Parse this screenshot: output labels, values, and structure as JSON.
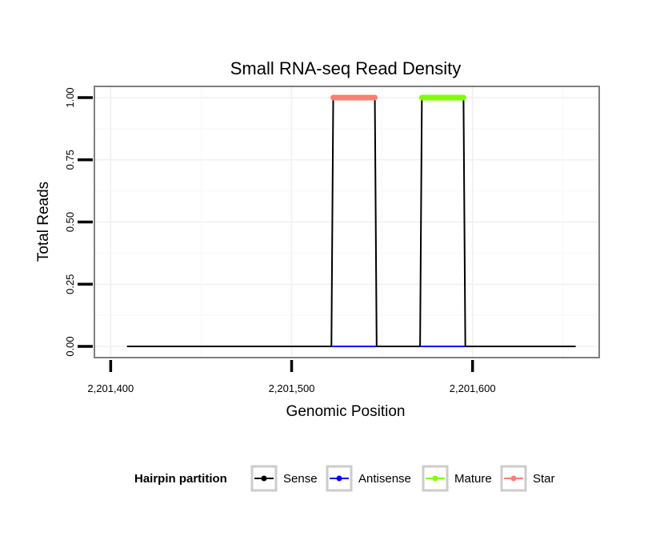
{
  "chart_data": {
    "type": "line",
    "title": "Small RNA-seq Read Density",
    "xlabel": "Genomic Position",
    "ylabel": "Total Reads",
    "xlim": [
      2201391,
      2201670
    ],
    "ylim": [
      -0.045,
      1.045
    ],
    "x_ticks": [
      2201400,
      2201500,
      2201600
    ],
    "x_tick_labels": [
      "2,201,400",
      "2,201,500",
      "2,201,600"
    ],
    "y_ticks": [
      0,
      0.25,
      0.5,
      0.75,
      1.0
    ],
    "y_tick_labels": [
      "0.00",
      "0.25",
      "0.50",
      "0.75",
      "1.00"
    ],
    "grid": true,
    "legend": {
      "title": "Hairpin partition",
      "position": "bottom",
      "entries": [
        "Sense",
        "Antisense",
        "Mature",
        "Star"
      ]
    },
    "series": [
      {
        "name": "Sense",
        "color": "#000000",
        "x": [
          2201409,
          2201522,
          2201523,
          2201546,
          2201547,
          2201571,
          2201572,
          2201595,
          2201596,
          2201657
        ],
        "y": [
          0,
          0,
          1,
          1,
          0,
          0,
          1,
          1,
          0,
          0
        ]
      },
      {
        "name": "Antisense",
        "color": "#0000ff",
        "x": [
          2201522,
          2201547,
          2201571,
          2201596
        ],
        "y": [
          0,
          0,
          0,
          0
        ],
        "segments": [
          [
            0,
            1
          ],
          [
            2,
            3
          ]
        ]
      },
      {
        "name": "Mature",
        "color": "#7fff00",
        "x": [
          2201572,
          2201595
        ],
        "y": [
          1,
          1
        ]
      },
      {
        "name": "Star",
        "color": "#fa8072",
        "x": [
          2201523,
          2201546
        ],
        "y": [
          1,
          1
        ]
      }
    ]
  }
}
